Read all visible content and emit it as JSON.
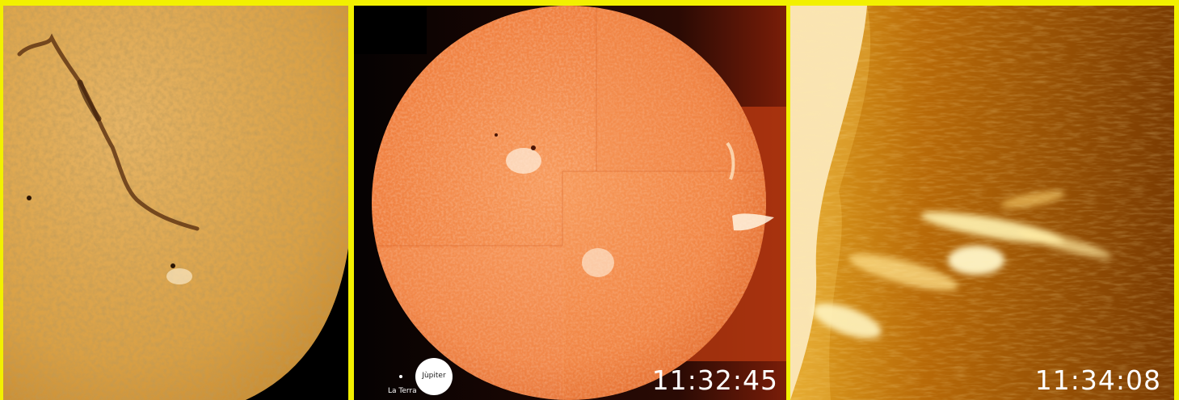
{
  "panels": {
    "left": {
      "description_colors": {
        "surface": "#d9a24a",
        "edge": "#e8b968"
      }
    },
    "middle": {
      "timestamp": "11:32:45",
      "scale": {
        "earth_label": "La Terra",
        "jupiter_label": "Jùpiter"
      }
    },
    "right": {
      "timestamp": "11:34:08"
    }
  },
  "colors": {
    "border": "#f2f000",
    "sun_orange": "#f07a35",
    "chromosphere_gold": "#d9a24a",
    "prominence_white": "#fff6d0"
  }
}
